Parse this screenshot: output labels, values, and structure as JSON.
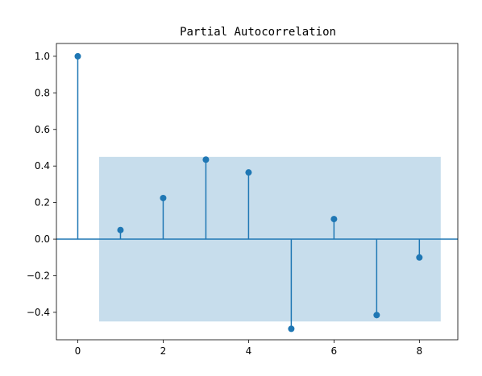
{
  "chart_data": {
    "type": "stem",
    "title": "Partial Autocorrelation",
    "xlabel": "",
    "ylabel": "",
    "xlim": [
      -0.5,
      8.9
    ],
    "ylim": [
      -0.55,
      1.07
    ],
    "x_ticks": [
      0,
      2,
      4,
      6,
      8
    ],
    "x_tick_labels": [
      "0",
      "2",
      "4",
      "6",
      "8"
    ],
    "y_ticks": [
      -0.4,
      -0.2,
      0.0,
      0.2,
      0.4,
      0.6,
      0.8,
      1.0
    ],
    "y_tick_labels": [
      "−0.4",
      "−0.2",
      "0.0",
      "0.2",
      "0.4",
      "0.6",
      "0.8",
      "1.0"
    ],
    "lags": [
      0,
      1,
      2,
      3,
      4,
      5,
      6,
      7,
      8
    ],
    "values": [
      1.0,
      0.05,
      0.225,
      0.435,
      0.365,
      -0.49,
      0.11,
      -0.415,
      -0.1
    ],
    "confidence_band": {
      "x_start": 0.5,
      "x_end": 8.5,
      "lower": -0.45,
      "upper": 0.45
    },
    "grid": false,
    "colors": {
      "stem": "#1f77b4",
      "band": "#1f77b4",
      "zero_line": "#1f77b4"
    }
  }
}
